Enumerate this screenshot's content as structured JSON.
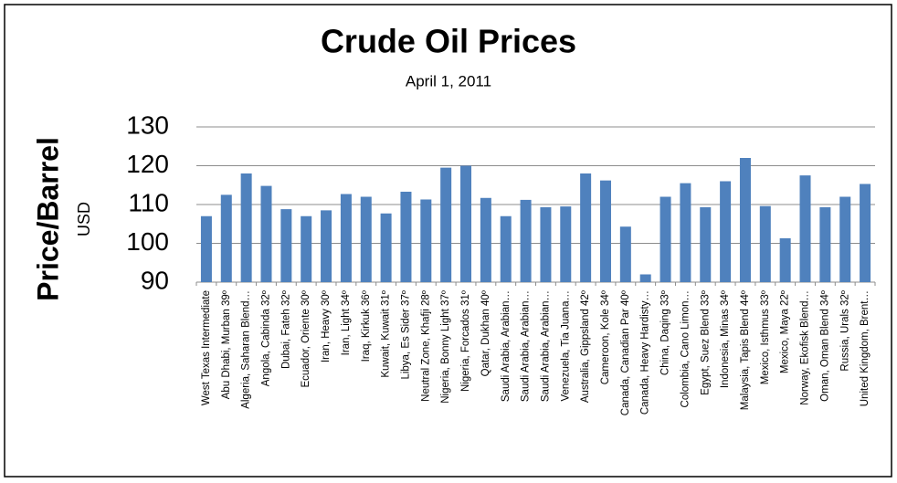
{
  "chart_data": {
    "type": "bar",
    "title": "Crude Oil Prices",
    "subtitle": "April 1, 2011",
    "ylabel": "Price/Barrel",
    "ylabel_unit": "USD",
    "categories": [
      "West Texas Intermediate",
      "Abu Dhabi, Murban 39º",
      "Algeria, Saharan Blend…",
      "Angola, Cabinda 32º",
      "Dubai, Fateh 32º",
      "Ecuador, Oriente 30º",
      "Iran, Heavy 30º",
      "Iran, Light 34º",
      "Iraq, Kirkuk 36º",
      "Kuwait, Kuwait 31º",
      "Libya, Es Sider 37º",
      "Neutral Zone, Khafji 28º",
      "Nigeria, Bonny Light 37º",
      "Nigeria, Forcados 31º",
      "Qatar, Dukhan 40º",
      "Saudi Arabia, Arabian…",
      "Saudi Arabia, Arabian…",
      "Saudi Arabia, Arabian…",
      "Venezuela, Tia Juana…",
      "Australia, Gippsland 42º",
      "Cameroon, Kole 34º",
      "Canada, Canadian Par 40º",
      "Canada, Heavy Hardisty…",
      "China, Daqing 33º",
      "Colombia, Cano Limon…",
      "Egypt, Suez Blend 33º",
      "Indonesia, Minas 34º",
      "Malaysia, Tapis Blend 44º",
      "Mexico, Isthmus 33º",
      "Mexico, Maya 22º",
      "Norway, Ekofisk Blend…",
      "Oman, Oman Blend 34º",
      "Russia, Urals 32º",
      "United Kingdom, Brent…"
    ],
    "values": [
      107,
      112.5,
      118,
      114.8,
      108.8,
      107,
      108.5,
      112.7,
      112,
      107.7,
      113.3,
      111.3,
      119.5,
      120,
      111.7,
      107,
      111.2,
      109.3,
      109.5,
      118,
      116.2,
      104.3,
      92,
      112,
      115.5,
      109.3,
      116,
      122,
      109.6,
      101.3,
      117.5,
      109.3,
      112,
      115.3
    ],
    "color": "#4f81bd",
    "ylim": [
      90,
      130
    ],
    "yticks": [
      90,
      100,
      110,
      120,
      130
    ],
    "grid": true
  }
}
